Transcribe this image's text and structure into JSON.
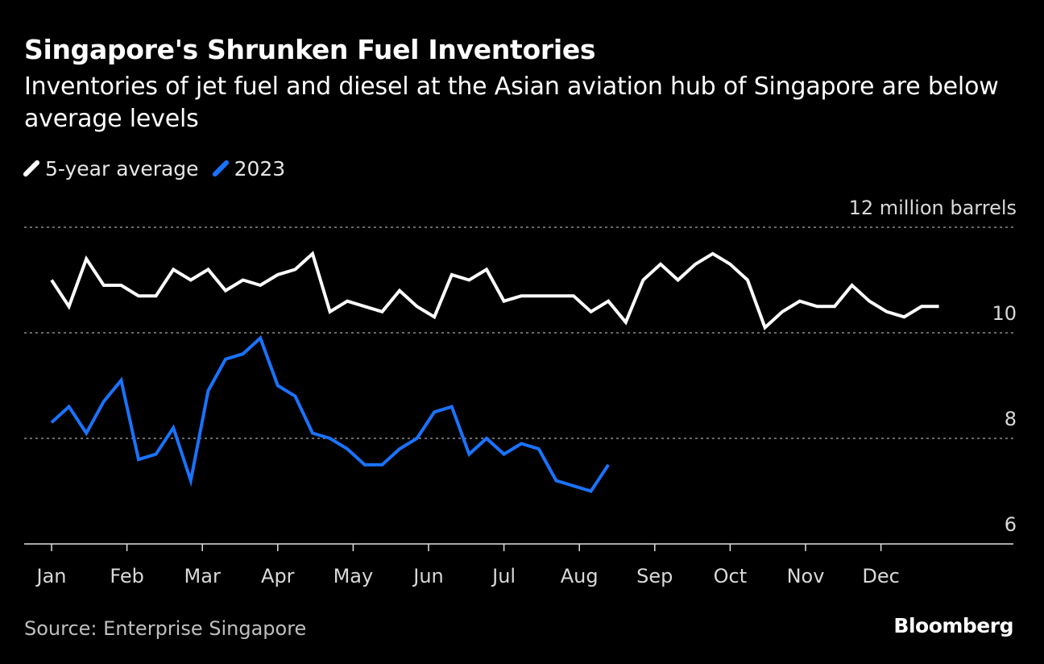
{
  "header": {
    "title": "Singapore's Shrunken Fuel Inventories",
    "subtitle": "Inventories of jet fuel and diesel at the Asian aviation hub of Singapore are below average levels"
  },
  "footer": {
    "source": "Source: Enterprise Singapore",
    "brand": "Bloomberg"
  },
  "colors": {
    "background": "#000000",
    "average_line": "#ffffff",
    "year_line": "#1a73ff",
    "grid": "#8c8c8c",
    "axis_text": "#d9d9d9"
  },
  "chart_data": {
    "type": "line",
    "title": "Singapore's Shrunken Fuel Inventories",
    "unit_label": "12 million barrels",
    "ylim": [
      6,
      12
    ],
    "yticks": [
      {
        "value": 12,
        "label": "12 million barrels"
      },
      {
        "value": 10,
        "label": "10"
      },
      {
        "value": 8,
        "label": "8"
      },
      {
        "value": 6,
        "label": "6"
      }
    ],
    "months": [
      "Jan",
      "Feb",
      "Mar",
      "Apr",
      "May",
      "Jun",
      "Jul",
      "Aug",
      "Sep",
      "Oct",
      "Nov",
      "Dec"
    ],
    "weeks_in_year": 52,
    "legend": [
      "5-year average",
      "2023"
    ],
    "series": [
      {
        "name": "5-year average",
        "color": "#ffffff",
        "values": [
          11.0,
          10.5,
          11.4,
          10.9,
          10.9,
          10.7,
          10.7,
          11.2,
          11.0,
          11.2,
          10.8,
          11.0,
          10.9,
          11.1,
          11.2,
          11.5,
          10.4,
          10.6,
          10.5,
          10.4,
          10.8,
          10.5,
          10.3,
          11.1,
          11.0,
          11.2,
          10.6,
          10.7,
          10.7,
          10.7,
          10.7,
          10.4,
          10.6,
          10.2,
          11.0,
          11.3,
          11.0,
          11.3,
          11.5,
          11.3,
          11.0,
          10.1,
          10.4,
          10.6,
          10.5,
          10.5,
          10.9,
          10.6,
          10.4,
          10.3,
          10.5,
          10.5
        ]
      },
      {
        "name": "2023",
        "color": "#1a73ff",
        "values": [
          8.3,
          8.6,
          8.1,
          8.7,
          9.1,
          7.6,
          7.7,
          8.2,
          7.2,
          8.9,
          9.5,
          9.6,
          9.9,
          9.0,
          8.8,
          8.1,
          8.0,
          7.8,
          7.5,
          7.5,
          7.8,
          8.0,
          8.5,
          8.6,
          7.7,
          8.0,
          7.7,
          7.9,
          7.8,
          7.2,
          7.1,
          7.0,
          7.5
        ]
      }
    ]
  }
}
